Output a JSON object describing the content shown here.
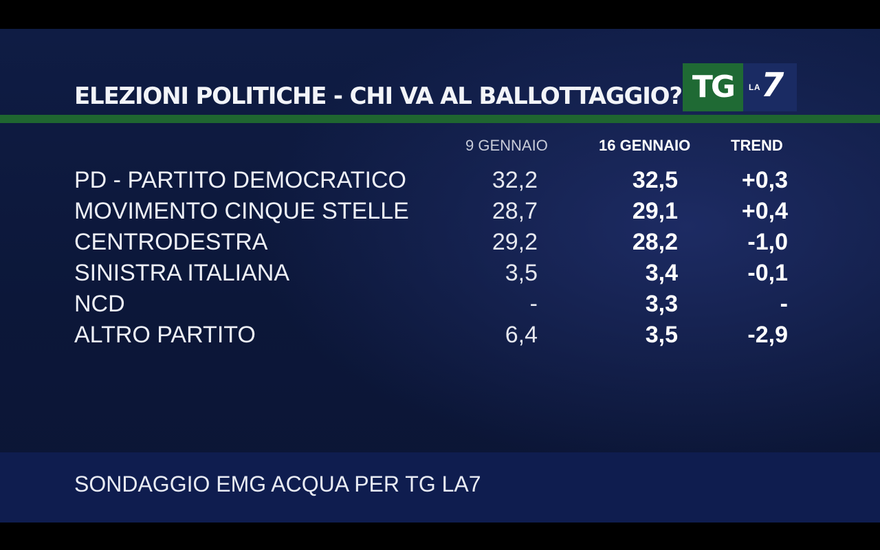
{
  "title": "ELEZIONI POLITICHE - CHI VA AL BALLOTTAGGIO?",
  "logo": {
    "tg": "TG",
    "la": "LA",
    "seven": "7"
  },
  "headers": {
    "col1": "9 GENNAIO",
    "col2": "16 GENNAIO",
    "col3": "TREND"
  },
  "footer": "SONDAGGIO EMG ACQUA PER TG LA7",
  "colors": {
    "background": "#0c1739",
    "accent_green": "#1f6630",
    "footer_band": "#0f1d4f",
    "text": "#ffffff"
  },
  "chart_data": {
    "type": "table",
    "title": "ELEZIONI POLITICHE - CHI VA AL BALLOTTAGGIO?",
    "columns": [
      "9 GENNAIO",
      "16 GENNAIO",
      "TREND"
    ],
    "rows": [
      {
        "label": "PD - PARTITO DEMOCRATICO",
        "values": [
          "32,2",
          "32,5",
          "+0,3"
        ]
      },
      {
        "label": "MOVIMENTO CINQUE STELLE",
        "values": [
          "28,7",
          "29,1",
          "+0,4"
        ]
      },
      {
        "label": "CENTRODESTRA",
        "values": [
          "29,2",
          "28,2",
          "-1,0"
        ]
      },
      {
        "label": "SINISTRA ITALIANA",
        "values": [
          "3,5",
          "3,4",
          "-0,1"
        ]
      },
      {
        "label": "NCD",
        "values": [
          "-",
          "3,3",
          "-"
        ]
      },
      {
        "label": "ALTRO PARTITO",
        "values": [
          "6,4",
          "3,5",
          "-2,9"
        ]
      }
    ]
  }
}
